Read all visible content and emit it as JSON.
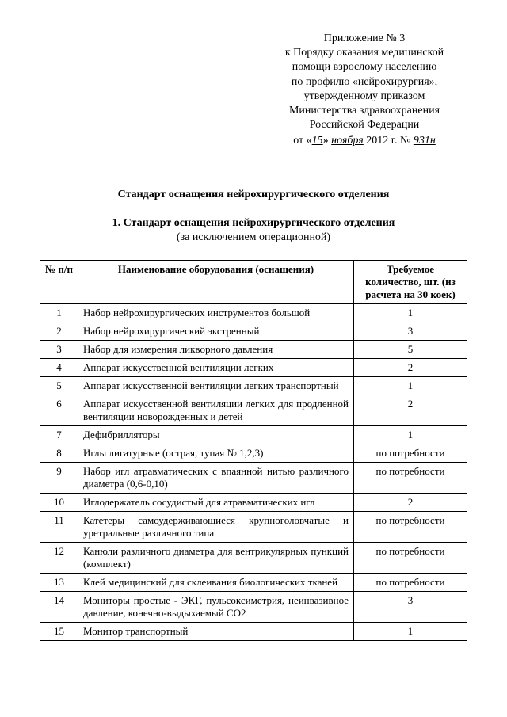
{
  "header": {
    "l1": "Приложение № 3",
    "l2": "к Порядку оказания медицинской",
    "l3": "помощи взрослому населению",
    "l4": "по профилю «нейрохирургия»,",
    "l5": "утвержденному приказом",
    "l6": "Министерства здравоохранения",
    "l7": "Российской Федерации",
    "date_prefix": "от «",
    "date_day": "15",
    "date_mid": "» ",
    "date_month": "ноября",
    "date_suffix": " 2012 г. № ",
    "date_num": "931н"
  },
  "title": "Стандарт оснащения нейрохирургического отделения",
  "subtitle": "1. Стандарт оснащения нейрохирургического отделения",
  "subnote": "(за исключением операционной)",
  "columns": {
    "num": "№ п/п",
    "name": "Наименование оборудования (оснащения)",
    "qty": "Требуемое количество, шт. (из расчета на 30 коек)"
  },
  "rows": [
    {
      "n": "1",
      "name": "Набор нейрохирургических инструментов большой",
      "q": "1"
    },
    {
      "n": "2",
      "name": "Набор нейрохирургический экстренный",
      "q": "3"
    },
    {
      "n": "3",
      "name": "Набор для измерения ликворного давления",
      "q": "5"
    },
    {
      "n": "4",
      "name": "Аппарат искусственной вентиляции легких",
      "q": "2"
    },
    {
      "n": "5",
      "name": "Аппарат искусственной вентиляции легких транспортный",
      "q": "1"
    },
    {
      "n": "6",
      "name": "Аппарат искусственной вентиляции легких для продленной вентиляции новорожденных и детей",
      "q": "2"
    },
    {
      "n": "7",
      "name": "Дефибрилляторы",
      "q": "1"
    },
    {
      "n": "8",
      "name": "Иглы лигатурные (острая, тупая № 1,2,3)",
      "q": "по потребности"
    },
    {
      "n": "9",
      "name": "Набор игл атравматических с впаянной нитью различного диаметра (0,6-0,10)",
      "q": "по потребности"
    },
    {
      "n": "10",
      "name": "Иглодержатель сосудистый для атравматических игл",
      "q": "2"
    },
    {
      "n": "11",
      "name": "Катетеры самоудерживающиеся крупноголовчатые и уретральные различного типа",
      "q": "по потребности"
    },
    {
      "n": "12",
      "name": "Канюли различного диаметра для вентрикулярных пункций (комплект)",
      "q": "по потребности"
    },
    {
      "n": "13",
      "name": "Клей медицинский для склеивания биологических тканей",
      "q": "по потребности"
    },
    {
      "n": "14",
      "name": "Мониторы простые - ЭКГ, пульсоксиметрия, неинвазивное давление, конечно-выдыхаемый CO2",
      "q": "3"
    },
    {
      "n": "15",
      "name": "Монитор транспортный",
      "q": "1"
    }
  ]
}
